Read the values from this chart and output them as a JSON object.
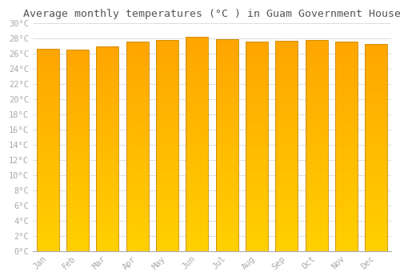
{
  "title": "Average monthly temperatures (°C ) in Guam Government House",
  "months": [
    "Jan",
    "Feb",
    "Mar",
    "Apr",
    "May",
    "Jun",
    "Jul",
    "Aug",
    "Sep",
    "Oct",
    "Nov",
    "Dec"
  ],
  "temperatures": [
    26.7,
    26.6,
    27.0,
    27.6,
    27.8,
    28.2,
    27.9,
    27.6,
    27.7,
    27.8,
    27.6,
    27.3
  ],
  "ylim": [
    0,
    30
  ],
  "ytick_step": 2,
  "bar_color_top": "#FFA500",
  "bar_color_bottom": "#FFD000",
  "bar_edge_color": "#CC8800",
  "background_color": "#FFFFFF",
  "grid_color": "#DDDDDD",
  "title_fontsize": 9.5,
  "tick_fontsize": 7.5,
  "tick_label_color": "#AAAAAA",
  "title_color": "#555555",
  "font_family": "monospace"
}
